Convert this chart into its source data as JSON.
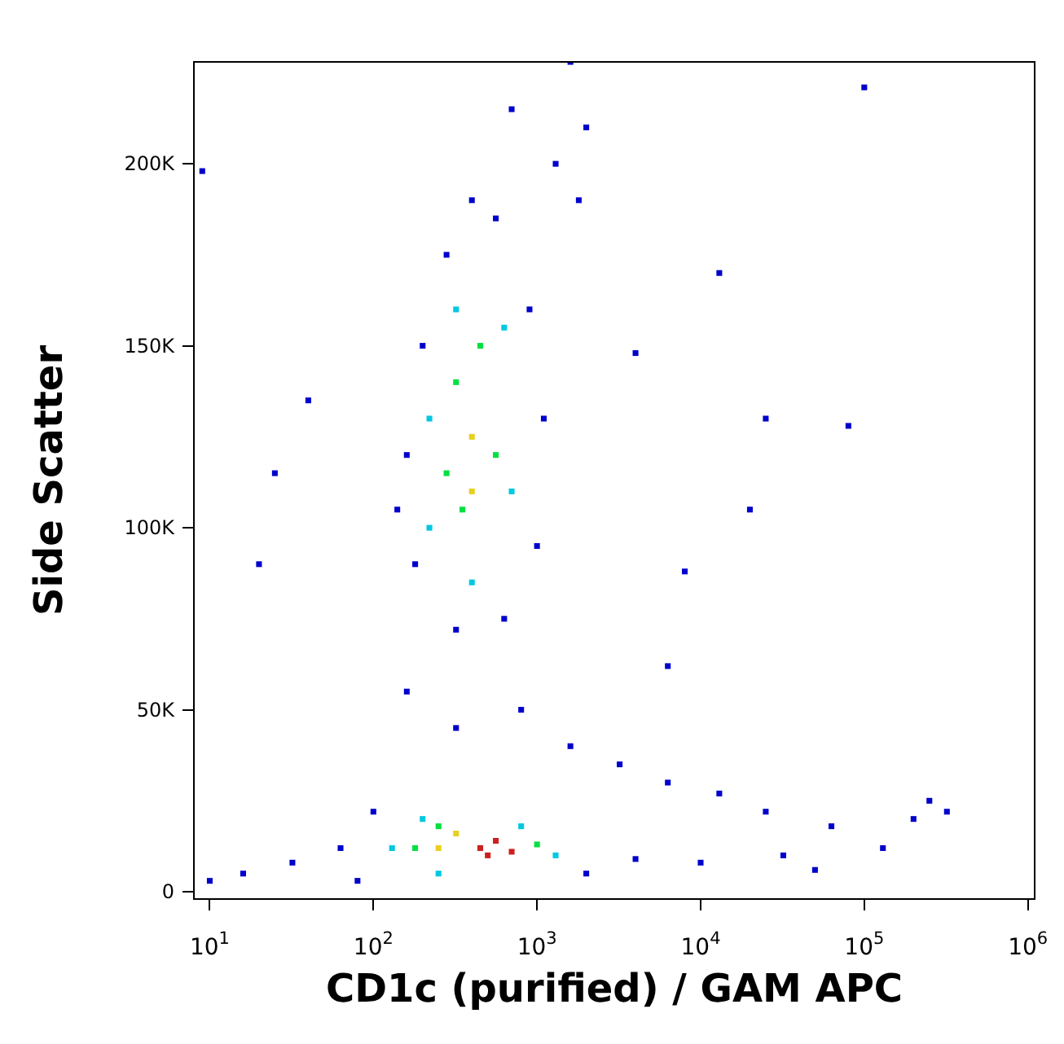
{
  "chart_data": {
    "type": "scatter",
    "xlabel": "CD1c (purified) / GAM APC",
    "ylabel": "Side Scatter",
    "log": "x",
    "xlim": [
      8,
      1100000
    ],
    "ylim": [
      -2000,
      228000
    ],
    "xticks": [
      {
        "value": 10,
        "label": "10$^{1}$"
      },
      {
        "value": 100,
        "label": "10$^{2}$"
      },
      {
        "value": 1000,
        "label": "10$^{3}$"
      },
      {
        "value": 10000,
        "label": "10$^{4}$"
      },
      {
        "value": 100000,
        "label": "10$^{5}$"
      },
      {
        "value": 1000000,
        "label": "10$^{6}$"
      }
    ],
    "yticks": [
      {
        "value": 0,
        "label": "0"
      },
      {
        "value": 50000,
        "label": "50K"
      },
      {
        "value": 100000,
        "label": "100K"
      },
      {
        "value": 150000,
        "label": "150K"
      },
      {
        "value": 200000,
        "label": "200K"
      }
    ],
    "grid": false,
    "legend": false,
    "marker": "square",
    "series": [
      {
        "color": "#0000cc",
        "x": [
          160,
          200,
          280,
          400,
          560,
          900,
          1100,
          1000,
          630,
          320,
          180,
          140,
          1600,
          2000,
          1800,
          1300,
          700,
          160,
          320,
          800,
          1600,
          3200,
          6300,
          13000,
          25000,
          63000,
          200000,
          250000,
          130000,
          32000,
          10000,
          4000,
          100,
          63,
          32,
          16,
          10,
          80,
          2000,
          50000,
          320000,
          9,
          40,
          25,
          20,
          13000,
          25000,
          80000,
          100000,
          20000,
          8000,
          4000,
          6300
        ],
        "values": [
          120000,
          150000,
          175000,
          190000,
          185000,
          160000,
          130000,
          95000,
          75000,
          72000,
          90000,
          105000,
          228000,
          210000,
          190000,
          200000,
          215000,
          55000,
          45000,
          50000,
          40000,
          35000,
          30000,
          27000,
          22000,
          18000,
          20000,
          25000,
          12000,
          10000,
          8000,
          9000,
          22000,
          12000,
          8000,
          5000,
          3000,
          3000,
          5000,
          6000,
          22000,
          198000,
          135000,
          115000,
          90000,
          170000,
          130000,
          128000,
          221000,
          105000,
          88000,
          148000,
          62000
        ]
      },
      {
        "color": "#00c8e0",
        "x": [
          220,
          320,
          630,
          700,
          400,
          220,
          130,
          200,
          800,
          1300,
          250
        ],
        "values": [
          130000,
          160000,
          155000,
          110000,
          85000,
          100000,
          12000,
          20000,
          18000,
          10000,
          5000
        ]
      },
      {
        "color": "#00e040",
        "x": [
          320,
          450,
          560,
          350,
          280,
          180,
          250,
          1000
        ],
        "values": [
          140000,
          150000,
          120000,
          105000,
          115000,
          12000,
          18000,
          13000
        ]
      },
      {
        "color": "#e8d020",
        "x": [
          400,
          400,
          250,
          320
        ],
        "values": [
          125000,
          110000,
          12000,
          16000
        ]
      },
      {
        "color": "#cc2020",
        "x": [
          450,
          560,
          700,
          500
        ],
        "values": [
          12000,
          14000,
          11000,
          10000
        ]
      }
    ]
  }
}
